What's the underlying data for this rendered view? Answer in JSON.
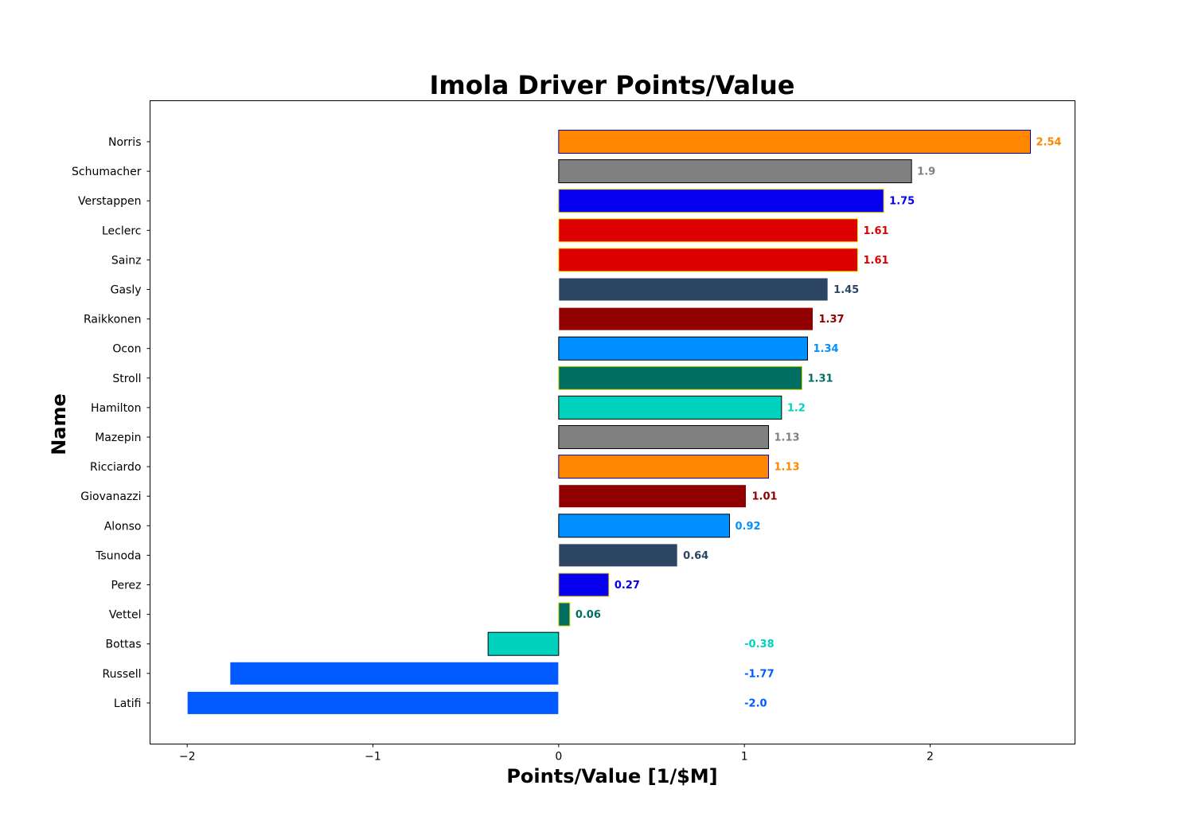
{
  "chart_data": {
    "type": "bar",
    "orientation": "horizontal",
    "title": "Imola Driver Points/Value",
    "xlabel": "Points/Value [1/$M]",
    "ylabel": "Name",
    "xlim": [
      -2.2,
      2.78
    ],
    "xticks": [
      -2,
      -1,
      0,
      1,
      2
    ],
    "xtick_labels": [
      "−2",
      "−1",
      "0",
      "1",
      "2"
    ],
    "grid": false,
    "bars": [
      {
        "name": "Norris",
        "value": 2.54,
        "label": "2.54",
        "fill": "#FF8700",
        "edge": "#0000CC"
      },
      {
        "name": "Schumacher",
        "value": 1.9,
        "label": "1.9",
        "fill": "#808080",
        "edge": "#000000"
      },
      {
        "name": "Verstappen",
        "value": 1.75,
        "label": "1.75",
        "fill": "#0600EF",
        "edge": "#E8D000"
      },
      {
        "name": "Leclerc",
        "value": 1.61,
        "label": "1.61",
        "fill": "#DC0000",
        "edge": "#FFEB00"
      },
      {
        "name": "Sainz",
        "value": 1.61,
        "label": "1.61",
        "fill": "#DC0000",
        "edge": "#FFEB00"
      },
      {
        "name": "Gasly",
        "value": 1.45,
        "label": "1.45",
        "fill": "#2B4562",
        "edge": "#FFFFFF"
      },
      {
        "name": "Raikkonen",
        "value": 1.37,
        "label": "1.37",
        "fill": "#900000",
        "edge": "#FFFFFF"
      },
      {
        "name": "Ocon",
        "value": 1.34,
        "label": "1.34",
        "fill": "#0090FF",
        "edge": "#000000"
      },
      {
        "name": "Stroll",
        "value": 1.31,
        "label": "1.31",
        "fill": "#006F62",
        "edge": "#D4D400"
      },
      {
        "name": "Hamilton",
        "value": 1.2,
        "label": "1.2",
        "fill": "#00D2BE",
        "edge": "#000000"
      },
      {
        "name": "Mazepin",
        "value": 1.13,
        "label": "1.13",
        "fill": "#808080",
        "edge": "#000000"
      },
      {
        "name": "Ricciardo",
        "value": 1.13,
        "label": "1.13",
        "fill": "#FF8700",
        "edge": "#0000CC"
      },
      {
        "name": "Giovanazzi",
        "value": 1.01,
        "label": "1.01",
        "fill": "#900000",
        "edge": "#FFFFFF"
      },
      {
        "name": "Alonso",
        "value": 0.92,
        "label": "0.92",
        "fill": "#0090FF",
        "edge": "#000000"
      },
      {
        "name": "Tsunoda",
        "value": 0.64,
        "label": "0.64",
        "fill": "#2B4562",
        "edge": "#FFFFFF"
      },
      {
        "name": "Perez",
        "value": 0.27,
        "label": "0.27",
        "fill": "#0600EF",
        "edge": "#E8D000"
      },
      {
        "name": "Vettel",
        "value": 0.06,
        "label": "0.06",
        "fill": "#006F62",
        "edge": "#D4D400"
      },
      {
        "name": "Bottas",
        "value": -0.38,
        "label": "-0.38",
        "fill": "#00D2BE",
        "edge": "#000000"
      },
      {
        "name": "Russell",
        "value": -1.77,
        "label": "-1.77",
        "fill": "#005AFF",
        "edge": "#FFFFFF"
      },
      {
        "name": "Latifi",
        "value": -2.0,
        "label": "-2.0",
        "fill": "#005AFF",
        "edge": "#FFFFFF"
      }
    ],
    "label_colors": {
      "Norris": "#FF8700",
      "Schumacher": "#808080",
      "Verstappen": "#0600EF",
      "Leclerc": "#DC0000",
      "Sainz": "#DC0000",
      "Gasly": "#2B4562",
      "Raikkonen": "#900000",
      "Ocon": "#0090FF",
      "Stroll": "#006F62",
      "Hamilton": "#00D2BE",
      "Mazepin": "#808080",
      "Ricciardo": "#FF8700",
      "Giovanazzi": "#900000",
      "Alonso": "#0090FF",
      "Tsunoda": "#2B4562",
      "Perez": "#0600EF",
      "Vettel": "#006F62",
      "Bottas": "#00D2BE",
      "Russell": "#005AFF",
      "Latifi": "#005AFF"
    }
  }
}
